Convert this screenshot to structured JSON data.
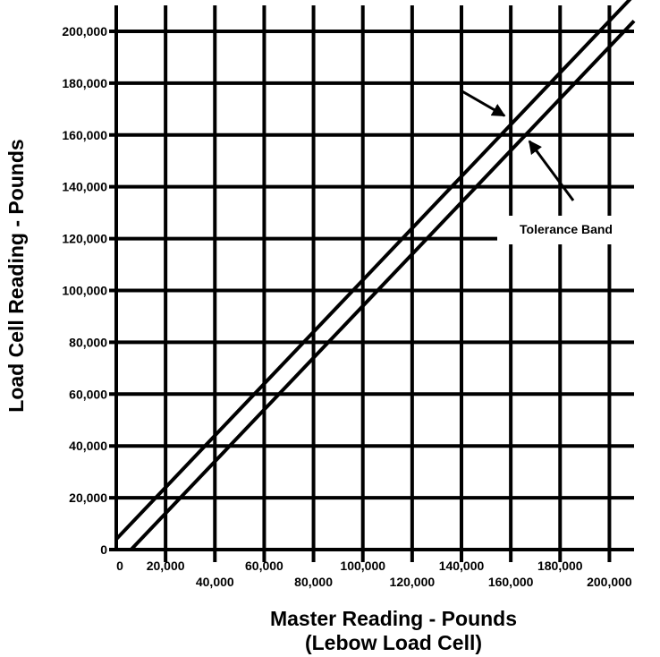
{
  "chart_data": {
    "type": "line",
    "title": "",
    "xlabel": "Master Reading - Pounds",
    "xlabel_sub": "(Lebow Load Cell)",
    "ylabel": "Load Cell Reading - Pounds",
    "xlim": [
      0,
      210000
    ],
    "ylim": [
      0,
      210000
    ],
    "grid": true,
    "x_ticks": [
      {
        "value": 0,
        "label": "0"
      },
      {
        "value": 20000,
        "label": "20,000"
      },
      {
        "value": 40000,
        "label": "40,000"
      },
      {
        "value": 60000,
        "label": "60,000"
      },
      {
        "value": 80000,
        "label": "80,000"
      },
      {
        "value": 100000,
        "label": "100,000"
      },
      {
        "value": 120000,
        "label": "120,000"
      },
      {
        "value": 140000,
        "label": "140,000"
      },
      {
        "value": 160000,
        "label": "160,000"
      },
      {
        "value": 180000,
        "label": "180,000"
      },
      {
        "value": 200000,
        "label": "200,000"
      }
    ],
    "y_ticks": [
      {
        "value": 0,
        "label": "0"
      },
      {
        "value": 20000,
        "label": "20,000"
      },
      {
        "value": 40000,
        "label": "40,000"
      },
      {
        "value": 60000,
        "label": "60,000"
      },
      {
        "value": 80000,
        "label": "80,000"
      },
      {
        "value": 100000,
        "label": "100,000"
      },
      {
        "value": 120000,
        "label": "120,000"
      },
      {
        "value": 140000,
        "label": "140,000"
      },
      {
        "value": 160000,
        "label": "160,000"
      },
      {
        "value": 180000,
        "label": "180,000"
      },
      {
        "value": 200000,
        "label": "200,000"
      }
    ],
    "series": [
      {
        "x": [
          0,
          210000
        ],
        "y": [
          4000,
          214000
        ]
      },
      {
        "x": [
          6000,
          210000
        ],
        "y": [
          0,
          204000
        ]
      }
    ],
    "annotation": {
      "text": "Tolerance Band",
      "upper_target": {
        "x": 160000,
        "y": 165000
      },
      "lower_target": {
        "x": 165000,
        "y": 160000
      }
    }
  }
}
